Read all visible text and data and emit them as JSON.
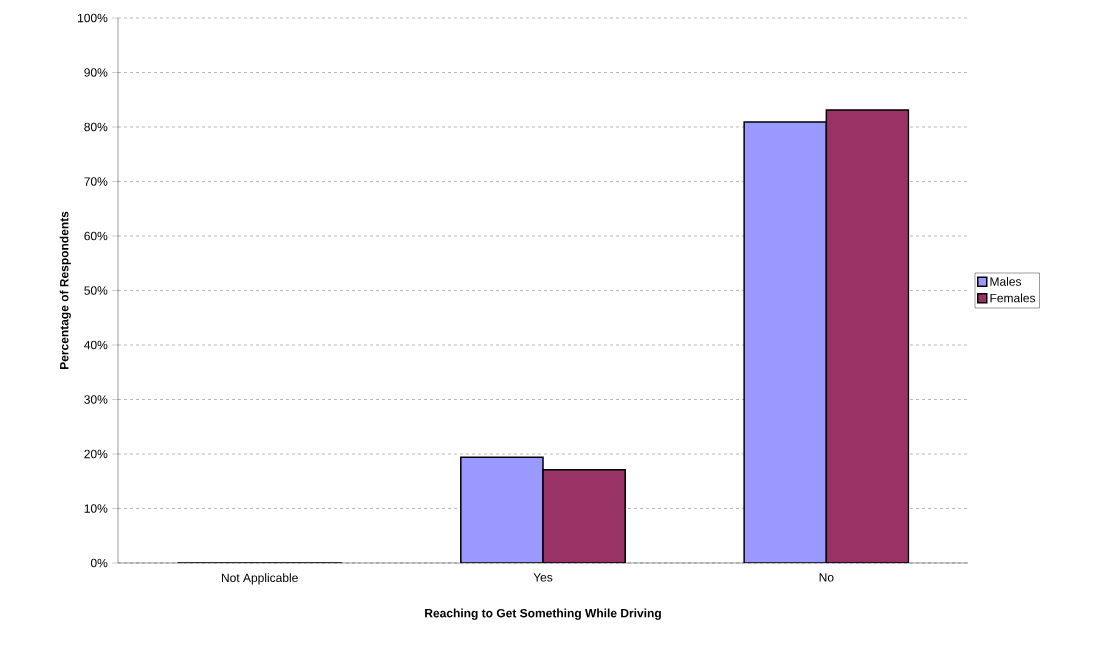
{
  "chart_data": {
    "type": "bar",
    "xlabel": "Reaching to Get Something While Driving",
    "ylabel": "Percentage of Respondents",
    "categories": [
      "Not Applicable",
      "Yes",
      "No"
    ],
    "series": [
      {
        "name": "Males",
        "color": "#9999ff",
        "values": [
          0,
          19.4,
          80.9
        ]
      },
      {
        "name": "Females",
        "color": "#993366",
        "values": [
          0,
          17.1,
          83.1
        ]
      }
    ],
    "ylim": [
      0,
      100
    ],
    "yticks": [
      {
        "value": 0,
        "label": "0%"
      },
      {
        "value": 10,
        "label": "10%"
      },
      {
        "value": 20,
        "label": "20%"
      },
      {
        "value": 30,
        "label": "30%"
      },
      {
        "value": 40,
        "label": "40%"
      },
      {
        "value": 50,
        "label": "50%"
      },
      {
        "value": 60,
        "label": "60%"
      },
      {
        "value": 70,
        "label": "70%"
      },
      {
        "value": 80,
        "label": "80%"
      },
      {
        "value": 90,
        "label": "90%"
      },
      {
        "value": 100,
        "label": "100%"
      }
    ],
    "grid": "y",
    "legend": "right"
  }
}
